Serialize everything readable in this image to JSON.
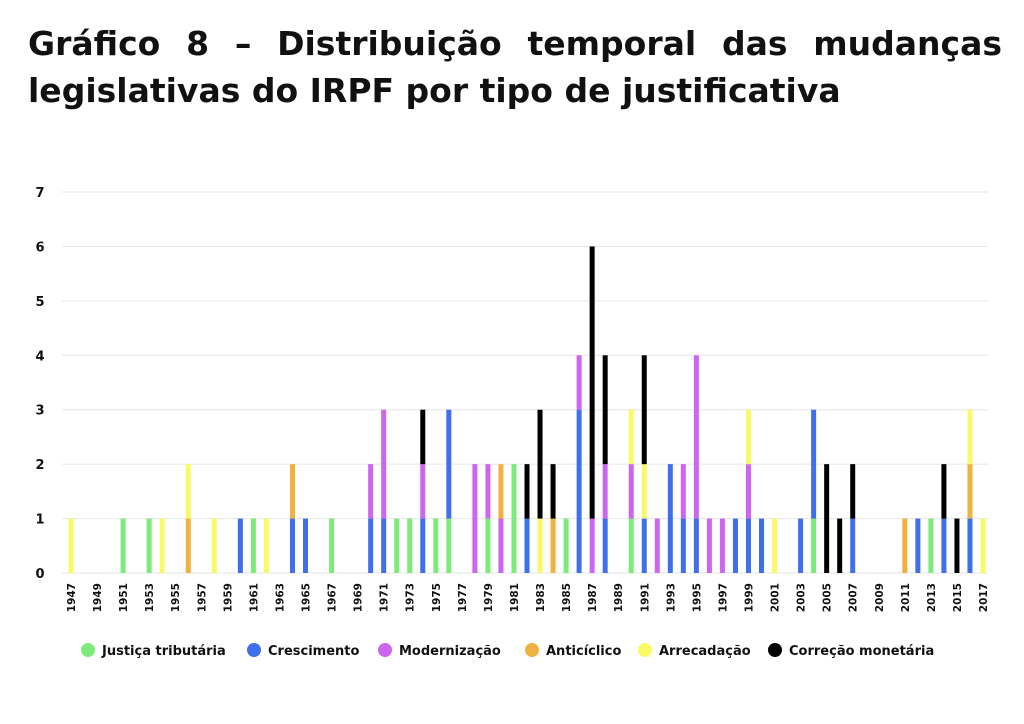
{
  "title": "Gráfico 8 – Distribuição temporal das mudanças legislativas do IRPF por tipo de justificativa",
  "colors": {
    "Justiça tributária": "#7DEB7A",
    "Crescimento": "#3F6FEA",
    "Modernização": "#CC66EE",
    "Anticíclico": "#EFB240",
    "Arrecadação": "#FAFA66",
    "Correção monetária": "#000000"
  },
  "chart_data": {
    "type": "bar",
    "stacked": true,
    "title": "",
    "xlabel": "",
    "ylabel": "",
    "ylim": [
      0,
      7
    ],
    "yticks": [
      0,
      1,
      2,
      3,
      4,
      5,
      6,
      7
    ],
    "grid": true,
    "legend_position": "bottom",
    "categories": [
      "1947",
      "1948",
      "1949",
      "1950",
      "1951",
      "1952",
      "1953",
      "1954",
      "1955",
      "1956",
      "1957",
      "1958",
      "1959",
      "1960",
      "1961",
      "1962",
      "1963",
      "1964",
      "1965",
      "1966",
      "1967",
      "1968",
      "1969",
      "1970",
      "1971",
      "1972",
      "1973",
      "1974",
      "1975",
      "1976",
      "1977",
      "1978",
      "1979",
      "1980",
      "1981",
      "1982",
      "1983",
      "1984",
      "1985",
      "1986",
      "1987",
      "1988",
      "1989",
      "1990",
      "1991",
      "1992",
      "1993",
      "1994",
      "1995",
      "1996",
      "1997",
      "1998",
      "1999",
      "2000",
      "2001",
      "2002",
      "2003",
      "2004",
      "2005",
      "2006",
      "2007",
      "2008",
      "2009",
      "2010",
      "2011",
      "2012",
      "2013",
      "2014",
      "2015",
      "2016",
      "2017"
    ],
    "tick_labels": [
      "1947",
      "1949",
      "1951",
      "1953",
      "1955",
      "1957",
      "1959",
      "1961",
      "1963",
      "1965",
      "1967",
      "1969",
      "1971",
      "1973",
      "1975",
      "1977",
      "1979",
      "1981",
      "1983",
      "1985",
      "1987",
      "1989",
      "1991",
      "1993",
      "1995",
      "1997",
      "1999",
      "2001",
      "2003",
      "2005",
      "2007",
      "2009",
      "2011",
      "2013",
      "2015",
      "2017"
    ],
    "series": [
      {
        "name": "Justiça tributária",
        "values": [
          0,
          0,
          0,
          0,
          1,
          0,
          1,
          0,
          0,
          0,
          0,
          0,
          0,
          0,
          1,
          0,
          0,
          0,
          0,
          0,
          1,
          0,
          0,
          0,
          0,
          1,
          1,
          0,
          1,
          1,
          0,
          0,
          1,
          0,
          2,
          0,
          0,
          0,
          1,
          0,
          0,
          0,
          0,
          1,
          0,
          0,
          0,
          0,
          0,
          0,
          0,
          0,
          0,
          0,
          0,
          0,
          0,
          1,
          0,
          0,
          0,
          0,
          0,
          0,
          0,
          0,
          1,
          0,
          0,
          0,
          0
        ]
      },
      {
        "name": "Crescimento",
        "values": [
          0,
          0,
          0,
          0,
          0,
          0,
          0,
          0,
          0,
          0,
          0,
          0,
          0,
          1,
          0,
          0,
          0,
          1,
          1,
          0,
          0,
          0,
          0,
          1,
          1,
          0,
          0,
          1,
          0,
          2,
          0,
          0,
          0,
          0,
          0,
          1,
          0,
          0,
          0,
          3,
          0,
          1,
          0,
          0,
          1,
          0,
          2,
          1,
          1,
          0,
          0,
          1,
          1,
          1,
          0,
          0,
          1,
          2,
          0,
          0,
          1,
          0,
          0,
          0,
          0,
          1,
          0,
          1,
          0,
          1,
          0
        ]
      },
      {
        "name": "Modernização",
        "values": [
          0,
          0,
          0,
          0,
          0,
          0,
          0,
          0,
          0,
          0,
          0,
          0,
          0,
          0,
          0,
          0,
          0,
          0,
          0,
          0,
          0,
          0,
          0,
          1,
          2,
          0,
          0,
          1,
          0,
          0,
          0,
          2,
          1,
          1,
          0,
          0,
          0,
          0,
          0,
          1,
          1,
          1,
          0,
          1,
          0,
          1,
          0,
          1,
          3,
          1,
          1,
          0,
          1,
          0,
          0,
          0,
          0,
          0,
          0,
          0,
          0,
          0,
          0,
          0,
          0,
          0,
          0,
          0,
          0,
          0,
          0
        ]
      },
      {
        "name": "Anticíclico",
        "values": [
          0,
          0,
          0,
          0,
          0,
          0,
          0,
          0,
          0,
          1,
          0,
          0,
          0,
          0,
          0,
          0,
          0,
          1,
          0,
          0,
          0,
          0,
          0,
          0,
          0,
          0,
          0,
          0,
          0,
          0,
          0,
          0,
          0,
          1,
          0,
          0,
          0,
          1,
          0,
          0,
          0,
          0,
          0,
          0,
          0,
          0,
          0,
          0,
          0,
          0,
          0,
          0,
          0,
          0,
          0,
          0,
          0,
          0,
          0,
          0,
          0,
          0,
          0,
          0,
          1,
          0,
          0,
          0,
          0,
          1,
          0
        ]
      },
      {
        "name": "Arrecadação",
        "values": [
          1,
          0,
          0,
          0,
          0,
          0,
          0,
          1,
          0,
          1,
          0,
          1,
          0,
          0,
          0,
          1,
          0,
          0,
          0,
          0,
          0,
          0,
          0,
          0,
          0,
          0,
          0,
          0,
          0,
          0,
          0,
          0,
          0,
          0,
          0,
          0,
          1,
          0,
          0,
          0,
          0,
          0,
          0,
          1,
          1,
          0,
          0,
          0,
          0,
          0,
          0,
          0,
          1,
          0,
          1,
          0,
          0,
          0,
          0,
          0,
          0,
          0,
          0,
          0,
          0,
          0,
          0,
          0,
          0,
          1,
          1
        ]
      },
      {
        "name": "Correção monetária",
        "values": [
          0,
          0,
          0,
          0,
          0,
          0,
          0,
          0,
          0,
          0,
          0,
          0,
          0,
          0,
          0,
          0,
          0,
          0,
          0,
          0,
          0,
          0,
          0,
          0,
          0,
          0,
          0,
          1,
          0,
          0,
          0,
          0,
          0,
          0,
          0,
          1,
          2,
          1,
          0,
          0,
          5,
          2,
          0,
          0,
          2,
          0,
          0,
          0,
          0,
          0,
          0,
          0,
          0,
          0,
          0,
          0,
          0,
          0,
          2,
          1,
          1,
          0,
          0,
          0,
          0,
          0,
          0,
          1,
          1,
          0,
          0
        ]
      }
    ]
  }
}
